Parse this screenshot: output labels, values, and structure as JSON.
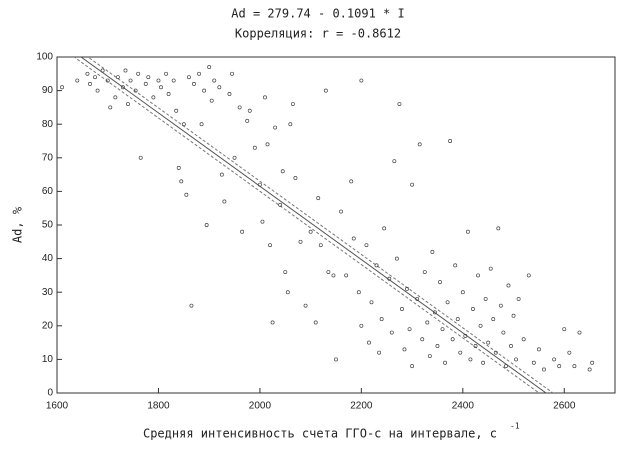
{
  "chart_data": {
    "type": "scatter",
    "title": "Ad = 279.74 - 0.1091 * I",
    "subtitle": "Корреляция: r = -0.8612",
    "x_label": "Средняя интенсивность счета ГГО-с на интервале, с",
    "x_label_superscript": "-1",
    "y_label": "Ad, %",
    "xlim": [
      1600,
      2700
    ],
    "ylim": [
      0,
      100
    ],
    "xticks": [
      1600,
      1800,
      2000,
      2200,
      2400,
      2600
    ],
    "yticks": [
      0,
      10,
      20,
      30,
      40,
      50,
      60,
      70,
      80,
      90,
      100
    ],
    "color": "#444444",
    "fit": {
      "intercept": 279.74,
      "slope": -0.1091,
      "confidence_halfwidth": 1.5
    },
    "x": [
      1610,
      1640,
      1660,
      1665,
      1675,
      1680,
      1690,
      1700,
      1705,
      1715,
      1720,
      1730,
      1735,
      1740,
      1745,
      1755,
      1760,
      1765,
      1775,
      1780,
      1790,
      1800,
      1805,
      1815,
      1820,
      1830,
      1835,
      1840,
      1845,
      1850,
      1855,
      1860,
      1865,
      1870,
      1880,
      1885,
      1890,
      1895,
      1900,
      1905,
      1910,
      1920,
      1925,
      1930,
      1940,
      1945,
      1950,
      1960,
      1965,
      1975,
      1980,
      1990,
      2000,
      2005,
      2010,
      2015,
      2020,
      2025,
      2030,
      2040,
      2045,
      2050,
      2055,
      2060,
      2065,
      2070,
      2080,
      2090,
      2100,
      2110,
      2115,
      2120,
      2130,
      2135,
      2145,
      2150,
      2160,
      2170,
      2180,
      2185,
      2195,
      2200,
      2200,
      2210,
      2215,
      2220,
      2230,
      2235,
      2240,
      2245,
      2255,
      2260,
      2265,
      2270,
      2275,
      2280,
      2285,
      2290,
      2295,
      2300,
      2300,
      2310,
      2315,
      2320,
      2325,
      2330,
      2335,
      2340,
      2345,
      2350,
      2355,
      2360,
      2365,
      2370,
      2375,
      2380,
      2385,
      2390,
      2395,
      2400,
      2405,
      2410,
      2415,
      2420,
      2425,
      2430,
      2435,
      2440,
      2445,
      2450,
      2455,
      2460,
      2465,
      2470,
      2475,
      2480,
      2485,
      2490,
      2495,
      2500,
      2505,
      2510,
      2520,
      2530,
      2540,
      2550,
      2560,
      2580,
      2590,
      2600,
      2610,
      2620,
      2630,
      2650,
      2655
    ],
    "values": [
      91,
      93,
      95,
      92,
      94,
      90,
      96,
      93,
      85,
      88,
      94,
      91,
      96,
      86,
      93,
      90,
      95,
      70,
      92,
      94,
      88,
      93,
      91,
      95,
      89,
      93,
      84,
      67,
      63,
      80,
      59,
      94,
      26,
      92,
      95,
      80,
      90,
      50,
      97,
      87,
      93,
      91,
      65,
      57,
      89,
      95,
      70,
      85,
      48,
      81,
      84,
      73,
      62,
      51,
      88,
      74,
      44,
      21,
      79,
      56,
      66,
      36,
      30,
      80,
      86,
      64,
      45,
      26,
      48,
      21,
      58,
      44,
      90,
      36,
      35,
      10,
      54,
      35,
      63,
      46,
      30,
      93,
      20,
      44,
      15,
      27,
      38,
      12,
      22,
      49,
      34,
      18,
      69,
      40,
      86,
      25,
      13,
      31,
      19,
      62,
      8,
      28,
      74,
      16,
      36,
      21,
      11,
      42,
      24,
      14,
      33,
      19,
      9,
      27,
      75,
      16,
      38,
      22,
      12,
      30,
      17,
      48,
      10,
      25,
      14,
      35,
      20,
      9,
      28,
      15,
      37,
      22,
      12,
      49,
      26,
      18,
      8,
      32,
      14,
      23,
      10,
      28,
      16,
      35,
      9,
      13,
      7,
      10,
      8,
      19,
      12,
      8,
      18,
      7,
      9
    ]
  }
}
